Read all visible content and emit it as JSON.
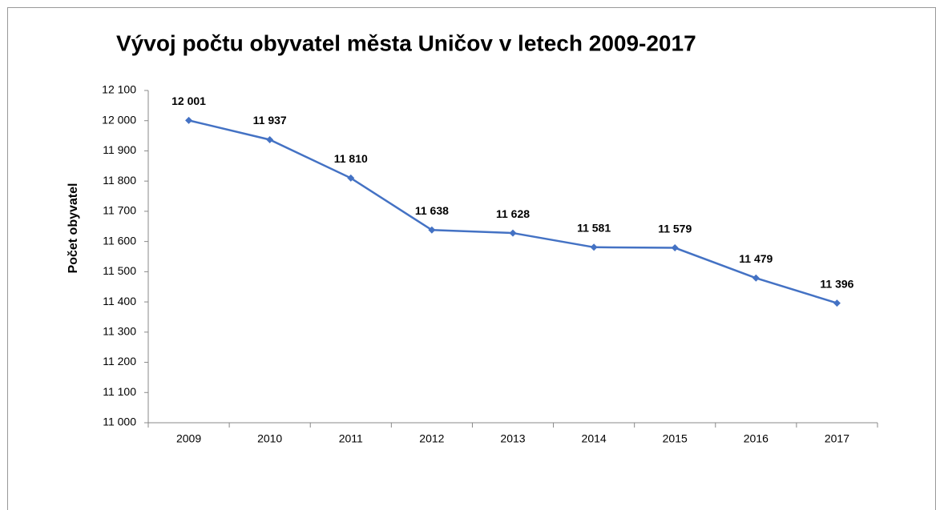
{
  "chart_data": {
    "type": "line",
    "title": "Vývoj počtu obyvatel města Uničov v letech 2009-2017",
    "y_label": "Počet obyvatel",
    "categories": [
      "2009",
      "2010",
      "2011",
      "2012",
      "2013",
      "2014",
      "2015",
      "2016",
      "2017"
    ],
    "values": [
      12001,
      11937,
      11810,
      11638,
      11628,
      11581,
      11579,
      11479,
      11396
    ],
    "value_labels": [
      "12 001",
      "11 937",
      "11 810",
      "11 638",
      "11 628",
      "11 581",
      "11 579",
      "11 479",
      "11 396"
    ],
    "color": "#4472c4",
    "ylim": [
      11000,
      12100
    ],
    "yticks": [
      {
        "value": 11000,
        "label": "11 000"
      },
      {
        "value": 11100,
        "label": "11 100"
      },
      {
        "value": 11200,
        "label": "11 200"
      },
      {
        "value": 11300,
        "label": "11 300"
      },
      {
        "value": 11400,
        "label": "11 400"
      },
      {
        "value": 11500,
        "label": "11 500"
      },
      {
        "value": 11600,
        "label": "11 600"
      },
      {
        "value": 11700,
        "label": "11 700"
      },
      {
        "value": 11800,
        "label": "11 800"
      },
      {
        "value": 11900,
        "label": "11 900"
      },
      {
        "value": 12000,
        "label": "12 000"
      },
      {
        "value": 12100,
        "label": "12 100"
      }
    ],
    "grid": false
  }
}
